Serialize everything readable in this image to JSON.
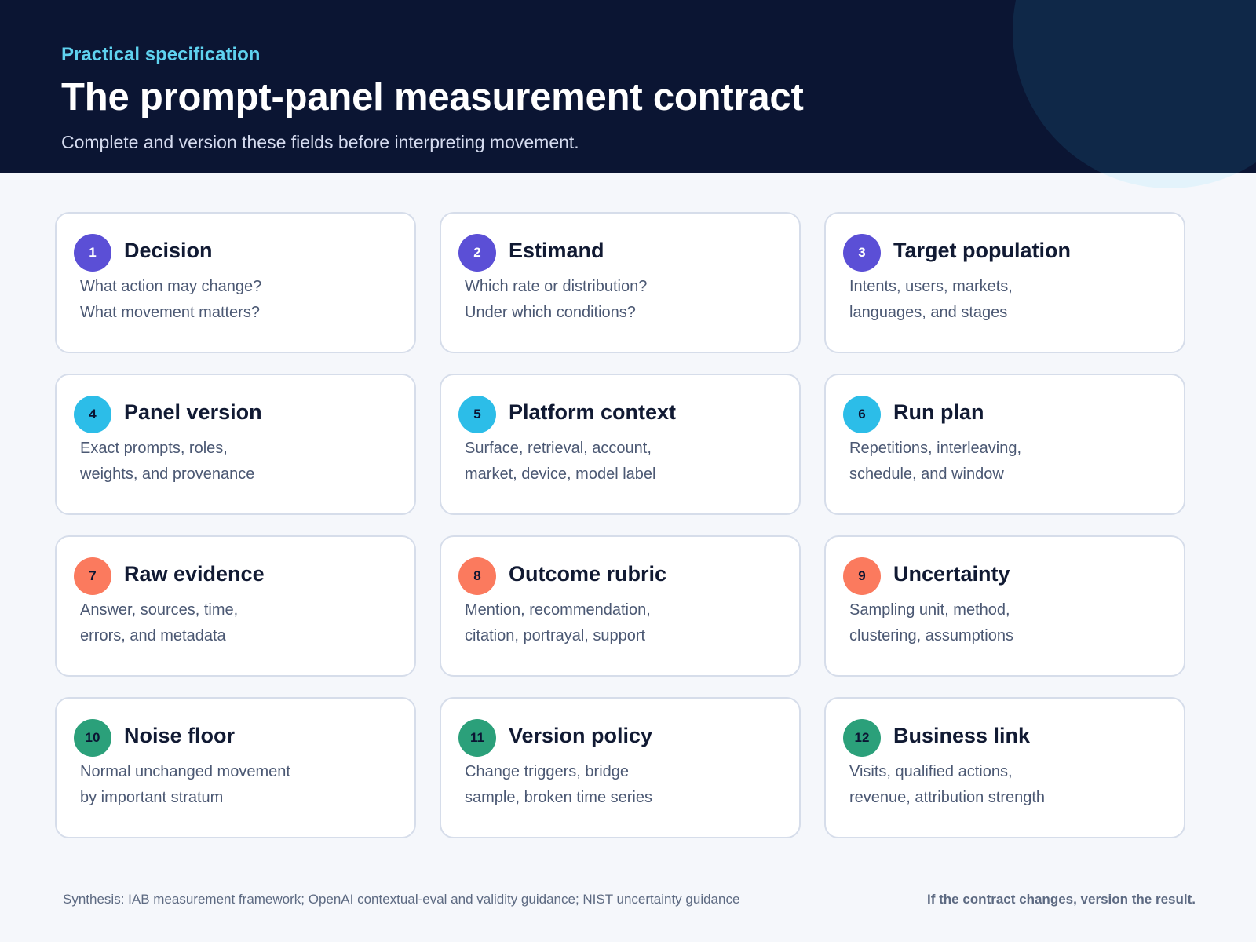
{
  "header": {
    "eyebrow": "Practical specification",
    "title": "The prompt-panel measurement contract",
    "subtitle": "Complete and version these fields before interpreting movement."
  },
  "colors": {
    "header_bg": "#0b1533",
    "accent_cyan": "#5fd2ef",
    "purple": "#5b4fd6",
    "cyan": "#2cbde8",
    "coral": "#fb7a5e",
    "green": "#2ba07a"
  },
  "cards": [
    {
      "number": "1",
      "title": "Decision",
      "line1": "What action may change?",
      "line2": "What movement matters?",
      "color": "purple"
    },
    {
      "number": "2",
      "title": "Estimand",
      "line1": "Which rate or distribution?",
      "line2": "Under which conditions?",
      "color": "purple"
    },
    {
      "number": "3",
      "title": "Target population",
      "line1": "Intents, users, markets,",
      "line2": "languages, and stages",
      "color": "purple"
    },
    {
      "number": "4",
      "title": "Panel version",
      "line1": "Exact prompts, roles,",
      "line2": "weights, and provenance",
      "color": "cyan"
    },
    {
      "number": "5",
      "title": "Platform context",
      "line1": "Surface, retrieval, account,",
      "line2": "market, device, model label",
      "color": "cyan"
    },
    {
      "number": "6",
      "title": "Run plan",
      "line1": "Repetitions, interleaving,",
      "line2": "schedule, and window",
      "color": "cyan"
    },
    {
      "number": "7",
      "title": "Raw evidence",
      "line1": "Answer, sources, time,",
      "line2": "errors, and metadata",
      "color": "coral"
    },
    {
      "number": "8",
      "title": "Outcome rubric",
      "line1": "Mention, recommendation,",
      "line2": "citation, portrayal, support",
      "color": "coral"
    },
    {
      "number": "9",
      "title": "Uncertainty",
      "line1": "Sampling unit, method,",
      "line2": "clustering, assumptions",
      "color": "coral"
    },
    {
      "number": "10",
      "title": "Noise floor",
      "line1": "Normal unchanged movement",
      "line2": "by important stratum",
      "color": "green"
    },
    {
      "number": "11",
      "title": "Version policy",
      "line1": "Change triggers, bridge",
      "line2": "sample, broken time series",
      "color": "green"
    },
    {
      "number": "12",
      "title": "Business link",
      "line1": "Visits, qualified actions,",
      "line2": "revenue, attribution strength",
      "color": "green"
    }
  ],
  "footer": {
    "source": "Synthesis: IAB measurement framework; OpenAI contextual-eval and validity guidance; NIST uncertainty guidance",
    "note": "If the contract changes, version the result."
  }
}
